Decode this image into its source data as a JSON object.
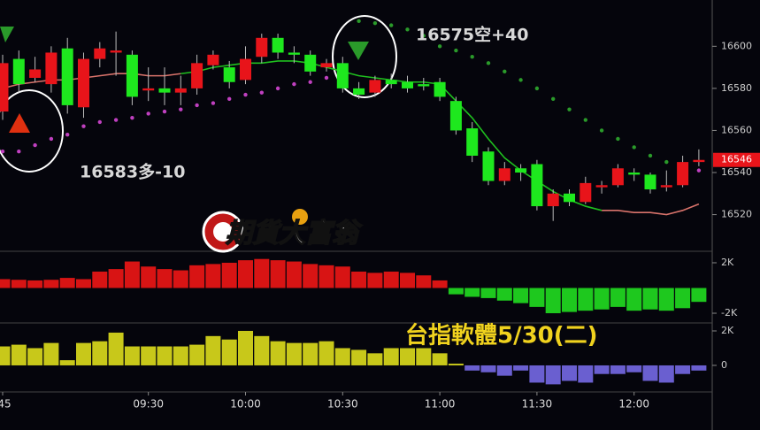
{
  "chart_data": [
    {
      "type": "candlestick",
      "title": "台指軟體5/30(二)",
      "watermark": "期貨大富翁",
      "categories": [
        ":45",
        null,
        null,
        null,
        null,
        null,
        null,
        null,
        null,
        "09:30",
        null,
        null,
        null,
        null,
        null,
        "10:00",
        null,
        null,
        null,
        null,
        null,
        "10:30",
        null,
        null,
        null,
        null,
        null,
        "11:00",
        null,
        null,
        null,
        null,
        null,
        "11:30",
        null,
        null,
        null,
        null,
        null,
        "12:00",
        null,
        null,
        null,
        null
      ],
      "open": [
        16569,
        16594,
        16585,
        16582,
        16599,
        16571,
        16594,
        16597,
        16596,
        16579,
        16580,
        16578,
        16580,
        16591,
        16590,
        16584,
        16595,
        16604,
        16597,
        16596,
        16590,
        16592,
        16580,
        16578,
        16584,
        16583,
        16582,
        16583,
        16574,
        16561,
        16550,
        16536,
        16542,
        16544,
        16524,
        16530,
        16526,
        16533,
        16534,
        16540,
        16539,
        16533,
        16534,
        16545
      ],
      "high": [
        16596,
        16598,
        16595,
        16600,
        16604,
        16597,
        16602,
        16607,
        16598,
        16590,
        16590,
        16586,
        16596,
        16598,
        16593,
        16600,
        16606,
        16606,
        16600,
        16598,
        16594,
        16595,
        16583,
        16586,
        16587,
        16586,
        16585,
        16585,
        16576,
        16564,
        16552,
        16545,
        16544,
        16546,
        16532,
        16532,
        16538,
        16536,
        16544,
        16542,
        16540,
        16541,
        16548,
        16551
      ],
      "low": [
        16565,
        16578,
        16583,
        16578,
        16568,
        16566,
        16590,
        16586,
        16572,
        16574,
        16572,
        16572,
        16577,
        16589,
        16580,
        16582,
        16592,
        16594,
        16592,
        16586,
        16588,
        16578,
        16575,
        16576,
        16580,
        16578,
        16579,
        16574,
        16558,
        16545,
        16534,
        16534,
        16536,
        16522,
        16517,
        16524,
        16525,
        16530,
        16533,
        16536,
        16530,
        16531,
        16533,
        16543
      ],
      "close": [
        16592,
        16582,
        16589,
        16597,
        16572,
        16594,
        16599,
        16598,
        16576,
        16580,
        16578,
        16580,
        16592,
        16596,
        16583,
        16594,
        16604,
        16597,
        16596,
        16588,
        16592,
        16580,
        16577,
        16584,
        16582,
        16580,
        16581,
        16576,
        16560,
        16548,
        16536,
        16542,
        16540,
        16524,
        16530,
        16526,
        16535,
        16534,
        16542,
        16539,
        16532,
        16534,
        16545,
        16546
      ],
      "up_color": "#e8141a",
      "down_color": "#1ee81e",
      "lines": [
        {
          "color": "#d9736b",
          "values": [
            16580,
            16582,
            16583,
            16584,
            16584,
            16585,
            16586,
            16587,
            16587,
            16586,
            16586,
            16587,
            null,
            null,
            null,
            null,
            null,
            null,
            null,
            null,
            null,
            null,
            null,
            null,
            null,
            null,
            null,
            null,
            null,
            null,
            null,
            null,
            null,
            null,
            null,
            null,
            null,
            16522,
            16522,
            16521,
            16521,
            16520,
            16522,
            16525
          ]
        },
        {
          "color": "#1fbf1f",
          "values": [
            null,
            null,
            null,
            null,
            null,
            null,
            null,
            null,
            null,
            null,
            null,
            16587,
            16588,
            16590,
            16591,
            16592,
            16592,
            16593,
            16593,
            16592,
            16590,
            16588,
            16586,
            16585,
            16584,
            16583,
            16583,
            16582,
            16574,
            16566,
            16556,
            16547,
            16541,
            16536,
            16531,
            16527,
            16524,
            16522,
            null,
            null,
            null,
            null,
            null,
            null
          ]
        }
      ],
      "sar": [
        16550,
        16550,
        16553,
        16556,
        16558,
        16562,
        16564,
        16565,
        16566,
        16568,
        16569,
        16570,
        16572,
        16573,
        16575,
        16577,
        16578,
        16580,
        16582,
        16583,
        16585,
        16587,
        16612,
        16611,
        16610,
        16608,
        16605,
        16600,
        16598,
        16595,
        16592,
        16588,
        16584,
        16580,
        16575,
        16570,
        16565,
        16560,
        16556,
        16552,
        16548,
        16545,
        16543,
        16541
      ],
      "sar_colors": [
        "#c040c0",
        "#2a9a2a"
      ],
      "annotations": [
        "16583多-10",
        "16575空+40"
      ],
      "last_price": 16546,
      "ylim": [
        16503,
        16622
      ],
      "yticks": [
        16520,
        16540,
        16560,
        16580,
        16600
      ]
    },
    {
      "type": "bar",
      "values": [
        700,
        650,
        600,
        650,
        800,
        700,
        1300,
        1500,
        2100,
        1700,
        1500,
        1400,
        1800,
        1900,
        2000,
        2200,
        2300,
        2200,
        2100,
        1900,
        1800,
        1700,
        1300,
        1200,
        1300,
        1200,
        1000,
        600,
        -500,
        -700,
        -800,
        -1000,
        -1200,
        -1500,
        -2000,
        -1900,
        -1800,
        -1700,
        -1500,
        -1800,
        -1700,
        -1800,
        -1600,
        -1100
      ],
      "colors": [
        "#d81414",
        "#1ec81e"
      ],
      "ylim": [
        -2770,
        2840
      ],
      "yticks": [
        {
          "value": 2000,
          "label": "2K"
        },
        {
          "value": -2000,
          "label": "-2K"
        }
      ]
    },
    {
      "type": "bar",
      "values": [
        1100,
        1200,
        1000,
        1300,
        300,
        1300,
        1400,
        1900,
        1100,
        1100,
        1100,
        1100,
        1200,
        1700,
        1500,
        2000,
        1700,
        1400,
        1300,
        1300,
        1400,
        1000,
        900,
        700,
        1000,
        1000,
        1000,
        700,
        100,
        -300,
        -400,
        -600,
        -300,
        -1000,
        -1100,
        -900,
        -1000,
        -500,
        -500,
        -400,
        -900,
        -1000,
        -500,
        -300
      ],
      "colors": [
        "#c8c81a",
        "#6a5fd0"
      ],
      "ylim": [
        -1490,
        2410
      ],
      "yticks": [
        {
          "value": 2000,
          "label": "2K"
        },
        0
      ]
    }
  ]
}
